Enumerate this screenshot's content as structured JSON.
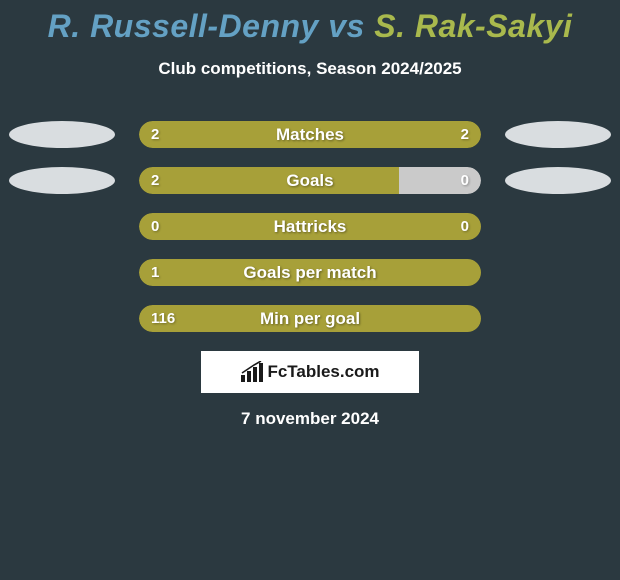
{
  "title_prefix": "R. Russell-Denny",
  "title_vs": " vs ",
  "title_suffix": "S. Rak-Sakyi",
  "title_color_left": "#64a1c4",
  "title_color_right": "#a9b94d",
  "subtitle": "Club competitions, Season 2024/2025",
  "date": "7 november 2024",
  "background_color": "#2b3940",
  "bar_base_color": "#233038",
  "fill_color": "#a7a039",
  "neutral_fill_color": "#cacaca",
  "ellipse_color": "#d9dde0",
  "logo_text": "FcTables.com",
  "logo_icon_color": "#1a1a1a",
  "rows": [
    {
      "label": "Matches",
      "left_val": "2",
      "right_val": "2",
      "left_pct": 50,
      "right_pct": 50,
      "show_left_ellipse": true,
      "show_right_ellipse": true,
      "right_val_visible": true
    },
    {
      "label": "Goals",
      "left_val": "2",
      "right_val": "0",
      "left_pct": 76,
      "right_pct": 24,
      "show_left_ellipse": true,
      "show_right_ellipse": true,
      "right_val_visible": true,
      "right_neutral": true
    },
    {
      "label": "Hattricks",
      "left_val": "0",
      "right_val": "0",
      "left_pct": 100,
      "right_pct": 0,
      "show_left_ellipse": false,
      "show_right_ellipse": false,
      "right_val_visible": true
    },
    {
      "label": "Goals per match",
      "left_val": "1",
      "right_val": "",
      "left_pct": 100,
      "right_pct": 0,
      "show_left_ellipse": false,
      "show_right_ellipse": false,
      "right_val_visible": false
    },
    {
      "label": "Min per goal",
      "left_val": "116",
      "right_val": "",
      "left_pct": 100,
      "right_pct": 0,
      "show_left_ellipse": false,
      "show_right_ellipse": false,
      "right_val_visible": false
    }
  ]
}
